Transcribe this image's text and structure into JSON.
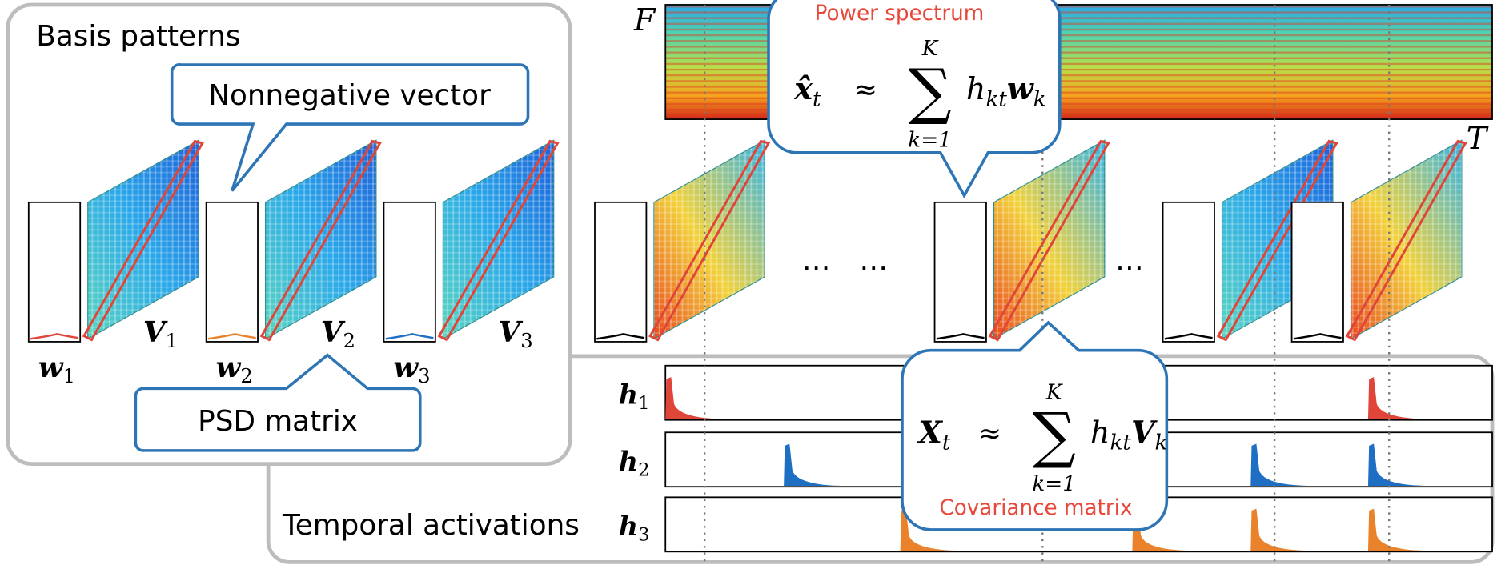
{
  "basis_panel": {
    "title": "Basis patterns",
    "callout_vector": "Nonnegative vector",
    "callout_matrix": "PSD matrix",
    "vectors": [
      {
        "symbol": "w",
        "index": "1"
      },
      {
        "symbol": "w",
        "index": "2"
      },
      {
        "symbol": "w",
        "index": "3"
      }
    ],
    "matrices": [
      {
        "symbol": "V",
        "index": "1"
      },
      {
        "symbol": "V",
        "index": "2"
      },
      {
        "symbol": "V",
        "index": "3"
      }
    ]
  },
  "spectrogram": {
    "freq_axis": "F",
    "time_axis": "T",
    "callout_title": "Power spectrum",
    "formula": {
      "lhs": "x̂",
      "lhs_sub": "t",
      "approx": "≈",
      "sum": "∑",
      "sum_upper": "K",
      "sum_lower": "k=1",
      "term": "h",
      "term_sub": "kt",
      "basis": "w",
      "basis_sub": "k"
    }
  },
  "ellipses": [
    "…",
    "…",
    "…"
  ],
  "activation_panel": {
    "title": "Temporal activations",
    "rows": [
      {
        "symbol": "h",
        "index": "1"
      },
      {
        "symbol": "h",
        "index": "2"
      },
      {
        "symbol": "h",
        "index": "3"
      }
    ],
    "callout_title": "Covariance matrix",
    "formula": {
      "lhs": "X",
      "lhs_sub": "t",
      "approx": "≈",
      "sum": "∑",
      "sum_upper": "K",
      "sum_lower": "k=1",
      "term": "h",
      "term_sub": "kt",
      "basis": "V",
      "basis_sub": "k"
    }
  }
}
